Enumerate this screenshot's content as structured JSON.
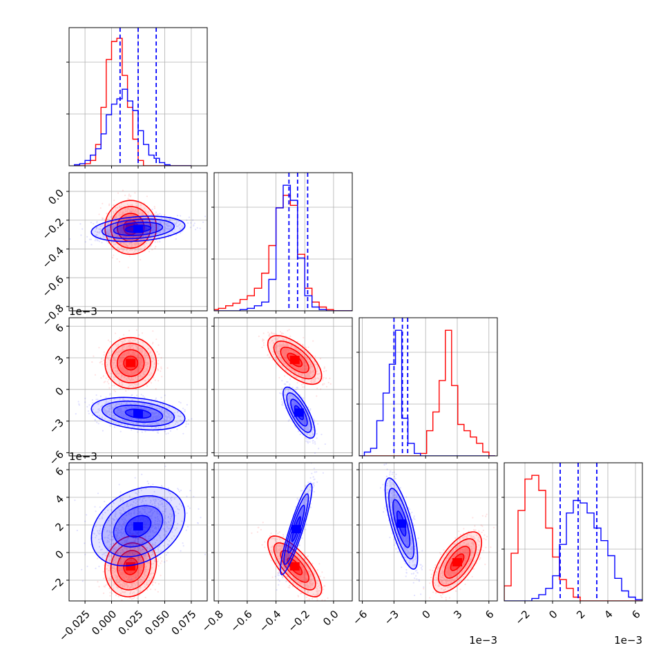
{
  "chart_data": {
    "type": "corner",
    "parameters": 4,
    "colors": {
      "series_a": "#ff0000",
      "series_b": "#0000ff"
    },
    "grid": true,
    "axes": [
      {
        "ticks": [
          -0.025,
          0.0,
          0.025,
          0.05,
          0.075
        ],
        "tick_labels": [
          "−0.025",
          "0.000",
          "0.025",
          "0.050",
          "0.075"
        ],
        "range": [
          -0.04,
          0.09
        ],
        "offset": ""
      },
      {
        "ticks": [
          -0.8,
          -0.6,
          -0.4,
          -0.2,
          0.0
        ],
        "tick_labels": [
          "−0.8",
          "−0.6",
          "−0.4",
          "−0.2",
          "0.0"
        ],
        "range": [
          -0.83,
          0.13
        ],
        "offset": ""
      },
      {
        "ticks": [
          -6,
          -3,
          0,
          3,
          6
        ],
        "tick_labels": [
          "−6",
          "−3",
          "0",
          "3",
          "6"
        ],
        "range": [
          -6.3,
          6.8
        ],
        "offset": "1e−3"
      },
      {
        "ticks": [
          -2,
          0,
          2,
          4,
          6
        ],
        "tick_labels": [
          "−2",
          "0",
          "2",
          "4",
          "6"
        ],
        "range": [
          -3.5,
          6.5
        ],
        "offset": "1e−3"
      }
    ],
    "marginals": [
      {
        "param": 0,
        "bins": [
          -0.035,
          0.075
        ],
        "ymax": 1.3,
        "series": [
          {
            "name": "",
            "color": "#ff0000",
            "heights": [
              0,
              0,
              0.02,
              0.05,
              0.2,
              0.55,
              1.0,
              1.17,
              1.2,
              0.85,
              0.55,
              0.25,
              0.05,
              0,
              0,
              0,
              0,
              0,
              0,
              0,
              0,
              0
            ]
          },
          {
            "name": "",
            "color": "#0000ff",
            "heights": [
              0.01,
              0.02,
              0.05,
              0.1,
              0.16,
              0.3,
              0.48,
              0.58,
              0.63,
              0.72,
              0.61,
              0.52,
              0.33,
              0.2,
              0.1,
              0.07,
              0.03,
              0.01,
              0,
              0,
              0,
              0
            ]
          }
        ],
        "quantiles": [
          0.008,
          0.025,
          0.042
        ]
      },
      {
        "param": 1,
        "bins": [
          -0.85,
          0.15
        ],
        "ymax": 1.1,
        "series": [
          {
            "name": "",
            "color": "#ff0000",
            "heights": [
              0.01,
              0.02,
              0.04,
              0.06,
              0.09,
              0.12,
              0.18,
              0.3,
              0.52,
              0.82,
              0.92,
              0.84,
              0.45,
              0.18,
              0.07,
              0.03,
              0.01,
              0,
              0,
              0
            ]
          },
          {
            "name": "",
            "color": "#0000ff",
            "heights": [
              0,
              0,
              0,
              0,
              0.01,
              0.02,
              0.04,
              0.07,
              0.25,
              0.82,
              1.0,
              0.88,
              0.42,
              0.12,
              0.03,
              0.01,
              0,
              0,
              0,
              0
            ]
          }
        ],
        "quantiles": [
          -0.31,
          -0.25,
          -0.18
        ]
      },
      {
        "param": 2,
        "bins": [
          -6.4,
          6.6
        ],
        "ymax": 1.1,
        "series": [
          {
            "name": "",
            "color": "#ff0000",
            "heights": [
              0,
              0,
              0,
              0,
              0,
              0,
              0,
              0,
              0,
              0,
              0.02,
              0.2,
              0.35,
              0.6,
              1.0,
              0.56,
              0.25,
              0.2,
              0.15,
              0.1,
              0.03,
              0
            ]
          },
          {
            "name": "",
            "color": "#0000ff",
            "heights": [
              0,
              0.03,
              0.06,
              0.28,
              0.5,
              0.73,
              1.0,
              0.3,
              0.1,
              0.02,
              0,
              0,
              0,
              0,
              0,
              0,
              0,
              0,
              0,
              0,
              0,
              0
            ]
          }
        ],
        "quantiles": [
          -3.0,
          -2.2,
          -1.7
        ]
      },
      {
        "param": 3,
        "bins": [
          -3.5,
          6.5
        ],
        "ymax": 1.1,
        "series": [
          {
            "name": "",
            "color": "#ff0000",
            "heights": [
              0.12,
              0.38,
              0.72,
              0.97,
              1.0,
              0.88,
              0.58,
              0.35,
              0.17,
              0.1,
              0.03,
              0,
              0,
              0,
              0,
              0,
              0,
              0,
              0,
              0
            ]
          },
          {
            "name": "",
            "color": "#0000ff",
            "heights": [
              0,
              0,
              0,
              0,
              0.02,
              0.05,
              0.1,
              0.2,
              0.45,
              0.7,
              0.8,
              0.78,
              0.7,
              0.58,
              0.48,
              0.36,
              0.18,
              0.08,
              0.03,
              0.01
            ]
          }
        ],
        "quantiles": [
          0.55,
          1.85,
          3.2
        ]
      }
    ],
    "joint": [
      {
        "row": 1,
        "col": 0,
        "clouds": [
          {
            "color": "#ff0000",
            "mean": [
              0.018,
              -0.25
            ],
            "sd": [
              0.011,
              0.085
            ],
            "rho": 0.0
          },
          {
            "color": "#0000ff",
            "mean": [
              0.025,
              -0.26
            ],
            "sd": [
              0.02,
              0.04
            ],
            "rho": 0.25
          }
        ]
      },
      {
        "row": 2,
        "col": 0,
        "clouds": [
          {
            "color": "#ff0000",
            "mean": [
              0.018,
              2.5
            ],
            "sd": [
              0.011,
              1.1
            ],
            "rho": 0.0
          },
          {
            "color": "#0000ff",
            "mean": [
              0.025,
              -2.3
            ],
            "sd": [
              0.02,
              0.7
            ],
            "rho": -0.3
          }
        ]
      },
      {
        "row": 3,
        "col": 0,
        "clouds": [
          {
            "color": "#ff0000",
            "mean": [
              0.018,
              -1.0
            ],
            "sd": [
              0.011,
              1.0
            ],
            "rho": 0.1
          },
          {
            "color": "#0000ff",
            "mean": [
              0.025,
              1.9
            ],
            "sd": [
              0.02,
              1.3
            ],
            "rho": 0.3
          }
        ]
      },
      {
        "row": 2,
        "col": 1,
        "clouds": [
          {
            "color": "#ff0000",
            "mean": [
              -0.27,
              2.8
            ],
            "sd": [
              0.085,
              1.05
            ],
            "rho": -0.65
          },
          {
            "color": "#0000ff",
            "mean": [
              -0.24,
              -2.2
            ],
            "sd": [
              0.05,
              1.1
            ],
            "rho": -0.75
          }
        ]
      },
      {
        "row": 3,
        "col": 1,
        "clouds": [
          {
            "color": "#ff0000",
            "mean": [
              -0.27,
              -1.0
            ],
            "sd": [
              0.085,
              1.0
            ],
            "rho": -0.75
          },
          {
            "color": "#0000ff",
            "mean": [
              -0.26,
              1.7
            ],
            "sd": [
              0.05,
              1.5
            ],
            "rho": 0.9
          }
        ]
      },
      {
        "row": 3,
        "col": 2,
        "clouds": [
          {
            "color": "#ff0000",
            "mean": [
              3.0,
              -0.7
            ],
            "sd": [
              1.05,
              1.0
            ],
            "rho": 0.65
          },
          {
            "color": "#0000ff",
            "mean": [
              -2.3,
              2.1
            ],
            "sd": [
              0.7,
              1.5
            ],
            "rho": -0.75
          }
        ]
      }
    ]
  }
}
